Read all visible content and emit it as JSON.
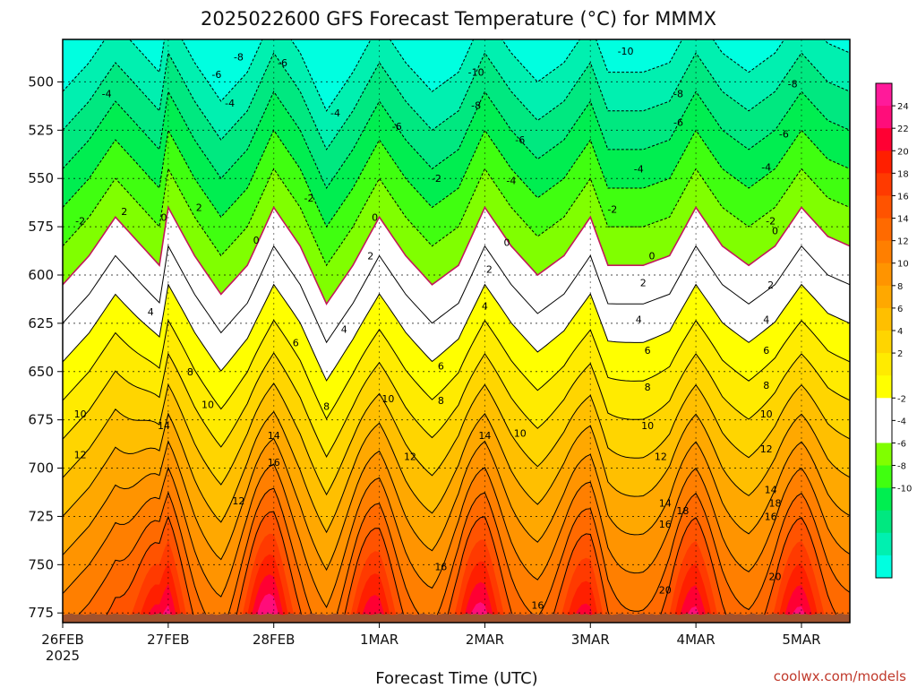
{
  "title": "2025022600 GFS Forecast Temperature (°C) for MMMX",
  "xlabel": "Forecast Time (UTC)",
  "credit": "coolwx.com/models",
  "colors": {
    "ground": "#a0522d",
    "freezing_line": "#c2185b",
    "band_fills": [
      "#00ffe0",
      "#00f0b0",
      "#00e880",
      "#00ee50",
      "#40ff10",
      "#80ff00",
      "#ffffff",
      "#ffffff",
      "#ffff00",
      "#ffeb00",
      "#ffd500",
      "#ffbf00",
      "#ffa800",
      "#ff9400",
      "#ff7f00",
      "#ff6a00",
      "#ff5300",
      "#ff3a00",
      "#ff1f00",
      "#ff0033",
      "#ff0d7a",
      "#ff1a9a"
    ]
  },
  "chart_data": {
    "type": "contour",
    "title": "2025022600 GFS Forecast Temperature (°C) for MMMX",
    "xlabel": "Forecast Time (UTC)",
    "ylabel": "",
    "y_axis": "pressure (hPa), inverted",
    "ylim": [
      780,
      478
    ],
    "y_ticks": [
      500,
      525,
      550,
      575,
      600,
      625,
      650,
      675,
      700,
      725,
      750,
      775
    ],
    "x_ticks": [
      {
        "hour": 0,
        "label": "26FEB",
        "sub": "2025"
      },
      {
        "hour": 24,
        "label": "27FEB"
      },
      {
        "hour": 48,
        "label": "28FEB"
      },
      {
        "hour": 72,
        "label": "1MAR"
      },
      {
        "hour": 96,
        "label": "2MAR"
      },
      {
        "hour": 120,
        "label": "3MAR"
      },
      {
        "hour": 144,
        "label": "4MAR"
      },
      {
        "hour": 168,
        "label": "5MAR"
      }
    ],
    "xlim_hours": [
      0,
      179
    ],
    "grid": true,
    "ground_pressure": 776,
    "contour_interval": 2,
    "contour_levels": [
      -10,
      -8,
      -6,
      -4,
      -2,
      0,
      2,
      4,
      6,
      8,
      10,
      12,
      14,
      16,
      18,
      20
    ],
    "colorbar": {
      "ticks": [
        24,
        22,
        20,
        18,
        16,
        14,
        12,
        10,
        8,
        6,
        4,
        2,
        -2,
        -4,
        -6,
        -8,
        -10
      ],
      "colors": [
        "#ff1a9a",
        "#ff0d7a",
        "#ff0033",
        "#ff1f00",
        "#ff3a00",
        "#ff5300",
        "#ff6a00",
        "#ff7f00",
        "#ff9400",
        "#ffa800",
        "#ffbf00",
        "#ffd500",
        "#ffeb00",
        "#ffff00",
        "#ffffff",
        "#ffffff",
        "#80ff00",
        "#40ff10",
        "#00ee50",
        "#00e880",
        "#00f0b0",
        "#00ffe0"
      ]
    },
    "lapse_rate_c_per_hpa": 0.1,
    "reference_pressure": 590,
    "level_temp_at_reference": [
      {
        "hour": 0,
        "t": -1.5
      },
      {
        "hour": 6,
        "t": 0.0
      },
      {
        "hour": 12,
        "t": 2.0
      },
      {
        "hour": 18,
        "t": 0.5
      },
      {
        "hour": 22,
        "t": -0.5
      },
      {
        "hour": 24,
        "t": 2.5
      },
      {
        "hour": 30,
        "t": 0.0
      },
      {
        "hour": 36,
        "t": -2.0
      },
      {
        "hour": 42,
        "t": -0.5
      },
      {
        "hour": 48,
        "t": 2.5
      },
      {
        "hour": 54,
        "t": 0.5
      },
      {
        "hour": 60,
        "t": -2.5
      },
      {
        "hour": 66,
        "t": -0.5
      },
      {
        "hour": 72,
        "t": 2.0
      },
      {
        "hour": 78,
        "t": 0.0
      },
      {
        "hour": 84,
        "t": -1.5
      },
      {
        "hour": 90,
        "t": -0.5
      },
      {
        "hour": 96,
        "t": 2.5
      },
      {
        "hour": 102,
        "t": 0.5
      },
      {
        "hour": 108,
        "t": -1.0
      },
      {
        "hour": 114,
        "t": 0.0
      },
      {
        "hour": 120,
        "t": 2.0
      },
      {
        "hour": 124,
        "t": -0.5
      },
      {
        "hour": 132,
        "t": -0.5
      },
      {
        "hour": 138,
        "t": 0.0
      },
      {
        "hour": 144,
        "t": 2.5
      },
      {
        "hour": 150,
        "t": 0.5
      },
      {
        "hour": 156,
        "t": -0.5
      },
      {
        "hour": 162,
        "t": 0.5
      },
      {
        "hour": 168,
        "t": 2.5
      },
      {
        "hour": 174,
        "t": 1.0
      },
      {
        "hour": 179,
        "t": 0.5
      }
    ],
    "surface_heating_peaks": [
      {
        "hour": 22,
        "amp": 9
      },
      {
        "hour": 46,
        "amp": 10
      },
      {
        "hour": 70,
        "amp": 8
      },
      {
        "hour": 94,
        "amp": 9
      },
      {
        "hour": 118,
        "amp": 7
      },
      {
        "hour": 143,
        "amp": 8
      },
      {
        "hour": 167,
        "amp": 8
      }
    ],
    "visible_contour_labels": [
      {
        "text": "-10",
        "hour": 128,
        "p": 484
      },
      {
        "text": "-10",
        "hour": 94,
        "p": 495
      },
      {
        "text": "-8",
        "hour": 40,
        "p": 487
      },
      {
        "text": "-8",
        "hour": 94,
        "p": 512
      },
      {
        "text": "-8",
        "hour": 140,
        "p": 506
      },
      {
        "text": "-8",
        "hour": 166,
        "p": 501
      },
      {
        "text": "-6",
        "hour": 35,
        "p": 496
      },
      {
        "text": "-6",
        "hour": 50,
        "p": 490
      },
      {
        "text": "-6",
        "hour": 76,
        "p": 523
      },
      {
        "text": "-6",
        "hour": 104,
        "p": 530
      },
      {
        "text": "-6",
        "hour": 140,
        "p": 521
      },
      {
        "text": "-6",
        "hour": 164,
        "p": 527
      },
      {
        "text": "-4",
        "hour": 10,
        "p": 506
      },
      {
        "text": "-4",
        "hour": 38,
        "p": 511
      },
      {
        "text": "-4",
        "hour": 62,
        "p": 516
      },
      {
        "text": "-4",
        "hour": 102,
        "p": 551
      },
      {
        "text": "-4",
        "hour": 131,
        "p": 545
      },
      {
        "text": "-4",
        "hour": 160,
        "p": 544
      },
      {
        "text": "-2",
        "hour": 4,
        "p": 572
      },
      {
        "text": "-2",
        "hour": 56,
        "p": 560
      },
      {
        "text": "-2",
        "hour": 85,
        "p": 550
      },
      {
        "text": "-2",
        "hour": 125,
        "p": 566
      },
      {
        "text": "-2",
        "hour": 161,
        "p": 572
      },
      {
        "text": "2",
        "hour": 14,
        "p": 567
      },
      {
        "text": "2",
        "hour": 31,
        "p": 565
      },
      {
        "text": "2",
        "hour": 70,
        "p": 590
      },
      {
        "text": "2",
        "hour": 97,
        "p": 597
      },
      {
        "text": "2",
        "hour": 132,
        "p": 604
      },
      {
        "text": "2",
        "hour": 161,
        "p": 605
      },
      {
        "text": "0",
        "hour": 23,
        "p": 570
      },
      {
        "text": "0",
        "hour": 44,
        "p": 582
      },
      {
        "text": "0",
        "hour": 71,
        "p": 570
      },
      {
        "text": "0",
        "hour": 101,
        "p": 583
      },
      {
        "text": "0",
        "hour": 134,
        "p": 590
      },
      {
        "text": "0",
        "hour": 162,
        "p": 577
      },
      {
        "text": "4",
        "hour": 20,
        "p": 619
      },
      {
        "text": "4",
        "hour": 64,
        "p": 628
      },
      {
        "text": "4",
        "hour": 96,
        "p": 616
      },
      {
        "text": "4",
        "hour": 131,
        "p": 623
      },
      {
        "text": "4",
        "hour": 160,
        "p": 623
      },
      {
        "text": "6",
        "hour": 53,
        "p": 635
      },
      {
        "text": "6",
        "hour": 86,
        "p": 647
      },
      {
        "text": "6",
        "hour": 133,
        "p": 639
      },
      {
        "text": "6",
        "hour": 160,
        "p": 639
      },
      {
        "text": "8",
        "hour": 29,
        "p": 650
      },
      {
        "text": "8",
        "hour": 60,
        "p": 668
      },
      {
        "text": "8",
        "hour": 86,
        "p": 665
      },
      {
        "text": "8",
        "hour": 133,
        "p": 658
      },
      {
        "text": "8",
        "hour": 160,
        "p": 657
      },
      {
        "text": "10",
        "hour": 4,
        "p": 672
      },
      {
        "text": "10",
        "hour": 33,
        "p": 667
      },
      {
        "text": "10",
        "hour": 74,
        "p": 664
      },
      {
        "text": "10",
        "hour": 104,
        "p": 682
      },
      {
        "text": "10",
        "hour": 133,
        "p": 678
      },
      {
        "text": "10",
        "hour": 160,
        "p": 672
      },
      {
        "text": "12",
        "hour": 4,
        "p": 693
      },
      {
        "text": "12",
        "hour": 40,
        "p": 717
      },
      {
        "text": "12",
        "hour": 79,
        "p": 694
      },
      {
        "text": "12",
        "hour": 136,
        "p": 694
      },
      {
        "text": "12",
        "hour": 160,
        "p": 690
      },
      {
        "text": "14",
        "hour": 23,
        "p": 678
      },
      {
        "text": "14",
        "hour": 48,
        "p": 683
      },
      {
        "text": "14",
        "hour": 96,
        "p": 683
      },
      {
        "text": "14",
        "hour": 137,
        "p": 718
      },
      {
        "text": "14",
        "hour": 161,
        "p": 711
      },
      {
        "text": "16",
        "hour": 48,
        "p": 697
      },
      {
        "text": "16",
        "hour": 86,
        "p": 751
      },
      {
        "text": "16",
        "hour": 108,
        "p": 771
      },
      {
        "text": "16",
        "hour": 137,
        "p": 729
      },
      {
        "text": "16",
        "hour": 161,
        "p": 725
      },
      {
        "text": "18",
        "hour": 141,
        "p": 722
      },
      {
        "text": "18",
        "hour": 162,
        "p": 718
      },
      {
        "text": "20",
        "hour": 137,
        "p": 763
      },
      {
        "text": "20",
        "hour": 162,
        "p": 756
      }
    ]
  }
}
